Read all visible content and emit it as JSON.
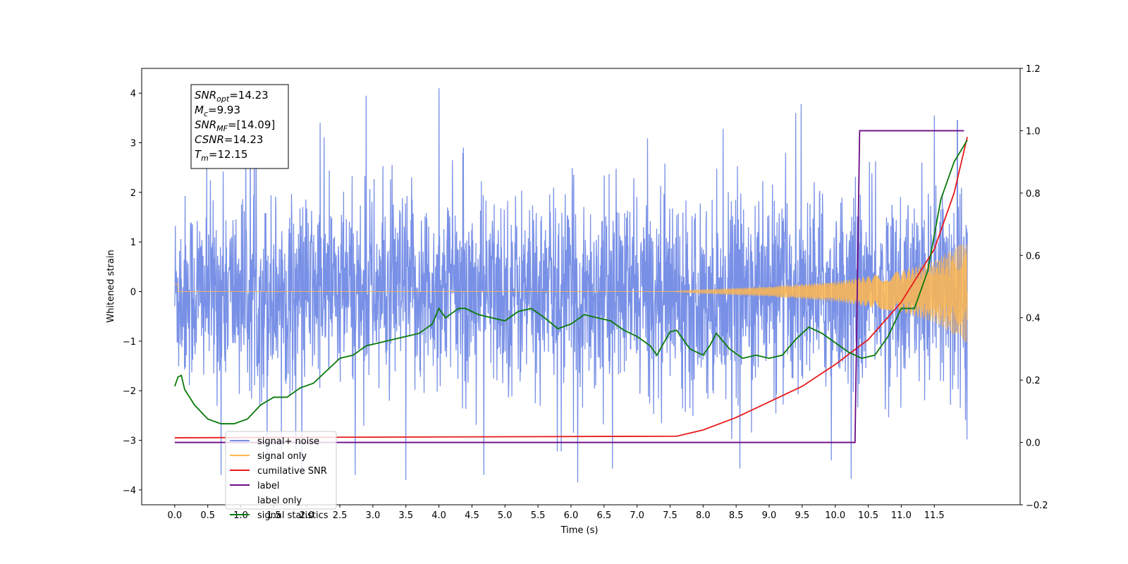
{
  "chart_data": {
    "type": "line",
    "xlabel": "Time (s)",
    "ylabel": "Whitened strain",
    "xlim": [
      -0.5,
      12.8
    ],
    "ylim": [
      -4.3,
      4.5
    ],
    "y2lim": [
      -0.2,
      1.2
    ],
    "x_ticks": [
      "0.0",
      "0.5",
      "1.0",
      "1.5",
      "2.0",
      "2.5",
      "3.0",
      "3.5",
      "4.0",
      "4.5",
      "5.0",
      "5.5",
      "6.0",
      "6.5",
      "7.0",
      "7.5",
      "8.0",
      "8.5",
      "9.0",
      "9.5",
      "10.0",
      "10.5",
      "11.0",
      "11.5"
    ],
    "y_ticks": [
      "4",
      "3",
      "2",
      "1",
      "0",
      "−1",
      "−2",
      "−3",
      "−4"
    ],
    "y2_ticks": [
      "1.2",
      "1.0",
      "0.8",
      "0.6",
      "0.4",
      "0.2",
      "0.0",
      "−0.2"
    ],
    "grid": false,
    "legend_position": "lower-left",
    "info_box": {
      "lines": [
        {
          "name": "SNR",
          "sub": "opt",
          "value": "=14.23"
        },
        {
          "name": "M",
          "sub": "c",
          "value": "=9.93"
        },
        {
          "name": "SNR",
          "sub": "MF",
          "value": "=[14.09]"
        },
        {
          "name": "CSNR",
          "sub": "",
          "value": "=14.23"
        },
        {
          "name": "T",
          "sub": "m",
          "value": "=12.15"
        }
      ]
    },
    "series": [
      {
        "name": "signal+ noise",
        "color": "#7890e6",
        "axis": "left",
        "x_range": [
          0.0,
          12.0
        ],
        "noise_sigma": 1.0,
        "peak_points": [
          [
            0.7,
            -3.7
          ],
          [
            1.4,
            -3.3
          ],
          [
            2.2,
            3.4
          ],
          [
            2.9,
            3.95
          ],
          [
            3.5,
            -3.8
          ],
          [
            4.0,
            4.1
          ],
          [
            6.1,
            -3.85
          ],
          [
            9.4,
            3.6
          ],
          [
            11.5,
            3.55
          ],
          [
            11.85,
            3.45
          ]
        ]
      },
      {
        "name": "signal only",
        "color": "#ffb74d",
        "axis": "left",
        "x_range": [
          0.0,
          12.0
        ],
        "envelope": [
          [
            0.0,
            0.0
          ],
          [
            7.5,
            0.0
          ],
          [
            8.0,
            0.04
          ],
          [
            9.0,
            0.1
          ],
          [
            10.0,
            0.2
          ],
          [
            11.0,
            0.42
          ],
          [
            11.5,
            0.62
          ],
          [
            12.0,
            1.05
          ]
        ]
      },
      {
        "name": "cumilative SNR",
        "color": "#e8191b",
        "axis": "right",
        "points": [
          [
            0.0,
            0.015
          ],
          [
            7.6,
            0.02
          ],
          [
            8.0,
            0.04
          ],
          [
            8.5,
            0.08
          ],
          [
            9.0,
            0.13
          ],
          [
            9.5,
            0.18
          ],
          [
            10.0,
            0.25
          ],
          [
            10.5,
            0.33
          ],
          [
            11.0,
            0.45
          ],
          [
            11.5,
            0.62
          ],
          [
            11.8,
            0.8
          ],
          [
            12.0,
            0.98
          ]
        ]
      },
      {
        "name": "label",
        "color": "#6a0a82",
        "axis": "right",
        "points": [
          [
            0.0,
            0.0
          ],
          [
            10.3,
            0.0
          ],
          [
            10.37,
            1.0
          ],
          [
            11.95,
            1.0
          ]
        ]
      },
      {
        "name": "label only",
        "color": "#ffffff",
        "axis": "right",
        "points": []
      },
      {
        "name": "signal statistics",
        "color": "#0a7a0a",
        "axis": "right",
        "points": [
          [
            0.0,
            0.18
          ],
          [
            0.05,
            0.21
          ],
          [
            0.1,
            0.215
          ],
          [
            0.15,
            0.17
          ],
          [
            0.3,
            0.12
          ],
          [
            0.5,
            0.075
          ],
          [
            0.7,
            0.06
          ],
          [
            0.9,
            0.06
          ],
          [
            1.1,
            0.075
          ],
          [
            1.3,
            0.12
          ],
          [
            1.5,
            0.145
          ],
          [
            1.7,
            0.145
          ],
          [
            1.9,
            0.175
          ],
          [
            2.1,
            0.19
          ],
          [
            2.3,
            0.23
          ],
          [
            2.5,
            0.27
          ],
          [
            2.7,
            0.28
          ],
          [
            2.9,
            0.31
          ],
          [
            3.1,
            0.32
          ],
          [
            3.3,
            0.33
          ],
          [
            3.5,
            0.34
          ],
          [
            3.7,
            0.35
          ],
          [
            3.9,
            0.38
          ],
          [
            4.0,
            0.43
          ],
          [
            4.1,
            0.4
          ],
          [
            4.3,
            0.43
          ],
          [
            4.4,
            0.43
          ],
          [
            4.6,
            0.41
          ],
          [
            4.8,
            0.4
          ],
          [
            5.0,
            0.39
          ],
          [
            5.2,
            0.42
          ],
          [
            5.4,
            0.43
          ],
          [
            5.6,
            0.4
          ],
          [
            5.8,
            0.365
          ],
          [
            6.0,
            0.38
          ],
          [
            6.2,
            0.41
          ],
          [
            6.4,
            0.4
          ],
          [
            6.6,
            0.39
          ],
          [
            6.8,
            0.36
          ],
          [
            7.0,
            0.34
          ],
          [
            7.2,
            0.31
          ],
          [
            7.3,
            0.28
          ],
          [
            7.5,
            0.355
          ],
          [
            7.6,
            0.36
          ],
          [
            7.8,
            0.3
          ],
          [
            8.0,
            0.28
          ],
          [
            8.1,
            0.31
          ],
          [
            8.2,
            0.35
          ],
          [
            8.4,
            0.3
          ],
          [
            8.6,
            0.27
          ],
          [
            8.8,
            0.28
          ],
          [
            9.0,
            0.27
          ],
          [
            9.2,
            0.28
          ],
          [
            9.4,
            0.33
          ],
          [
            9.6,
            0.37
          ],
          [
            9.8,
            0.35
          ],
          [
            10.0,
            0.32
          ],
          [
            10.2,
            0.29
          ],
          [
            10.4,
            0.27
          ],
          [
            10.6,
            0.28
          ],
          [
            10.8,
            0.34
          ],
          [
            11.0,
            0.43
          ],
          [
            11.2,
            0.43
          ],
          [
            11.4,
            0.55
          ],
          [
            11.6,
            0.78
          ],
          [
            11.8,
            0.9
          ],
          [
            12.0,
            0.97
          ]
        ]
      }
    ]
  }
}
